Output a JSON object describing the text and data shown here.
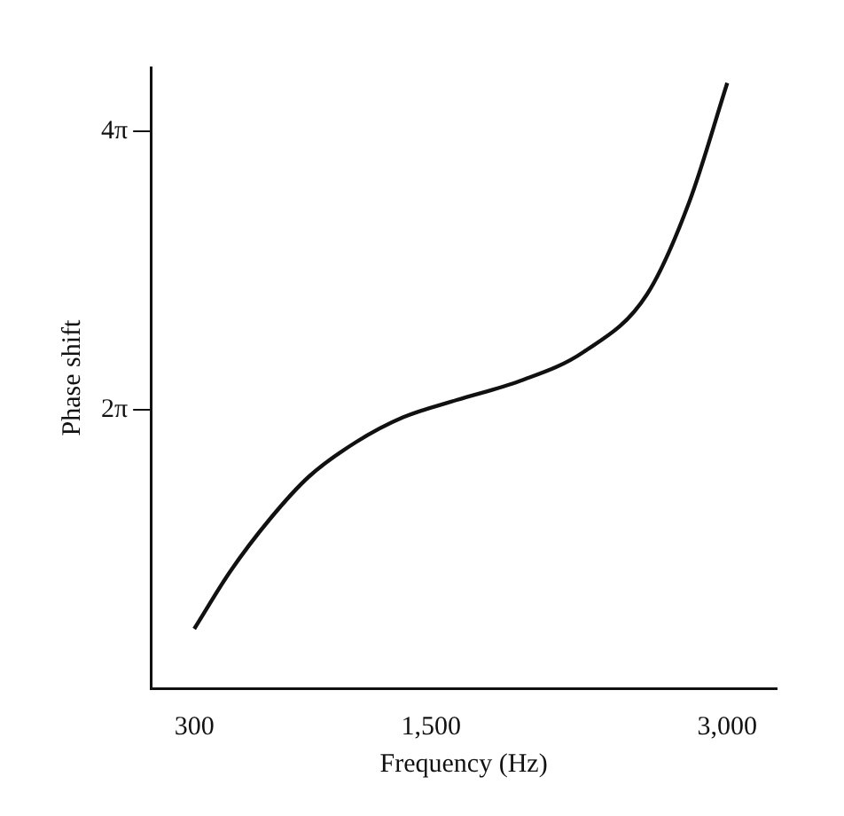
{
  "chart_data": {
    "type": "line",
    "xlabel": "Frequency (Hz)",
    "ylabel": "Phase shift",
    "x": [
      300,
      483,
      682,
      880,
      1119,
      1357,
      1629,
      1950,
      2271,
      2593,
      2807,
      3000
    ],
    "series": [
      {
        "color": "#111111",
        "values": [
          1.34,
          2.64,
          3.81,
          4.77,
          5.55,
          6.11,
          6.5,
          6.93,
          7.58,
          8.88,
          10.96,
          13.65
        ]
      }
    ],
    "xlim": [
      80,
      3250
    ],
    "xticks": [
      {
        "value": 300,
        "label": "300"
      },
      {
        "value": 1500,
        "label": "1,500"
      },
      {
        "value": 3000,
        "label": "3,000"
      }
    ],
    "ylim": [
      0,
      14
    ],
    "yticks": [
      {
        "value": 6.283,
        "label": "2π"
      },
      {
        "value": 12.566,
        "label": "4π"
      }
    ],
    "grid": false,
    "legend": false,
    "marker": "none",
    "line_style": "solid"
  }
}
